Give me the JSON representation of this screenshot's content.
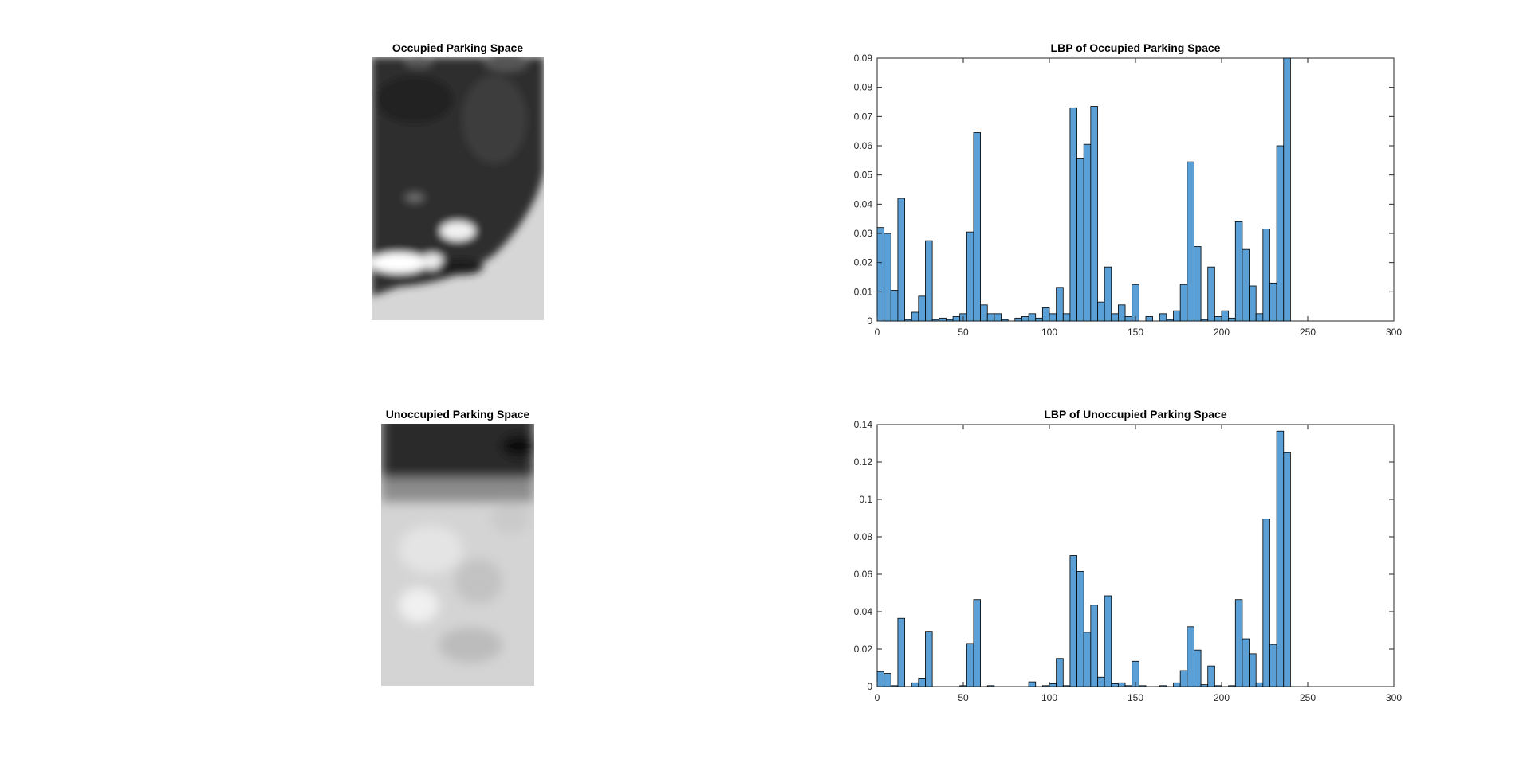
{
  "figure": {
    "panels": [
      {
        "title": "Occupied Parking Space",
        "image": "occupied-parking-space-grayscale-image"
      },
      {
        "title": "Unoccupied Parking Space",
        "image": "unoccupied-parking-space-grayscale-image"
      }
    ]
  },
  "colors": {
    "bar_fill": "#5aa0d6",
    "bar_edge": "#000000",
    "axis": "#262626",
    "background": "#ffffff"
  },
  "chart_data": [
    {
      "type": "bar",
      "title": "LBP of Occupied Parking Space",
      "xlabel": "",
      "ylabel": "",
      "xlim": [
        0,
        300
      ],
      "ylim": [
        0,
        0.09
      ],
      "xticks": [
        "0",
        "50",
        "100",
        "150",
        "200",
        "250",
        "300"
      ],
      "yticks": [
        "0",
        "0.01",
        "0.02",
        "0.03",
        "0.04",
        "0.05",
        "0.06",
        "0.07",
        "0.08",
        "0.09"
      ],
      "grid": false,
      "bin_width": 4.0,
      "bin_edges_start": 0,
      "values": [
        0.032,
        0.03,
        0.0105,
        0.042,
        0.0005,
        0.003,
        0.0085,
        0.0275,
        0.0005,
        0.001,
        0.0005,
        0.0015,
        0.0025,
        0.0305,
        0.0645,
        0.0055,
        0.0025,
        0.0025,
        0.0005,
        0.0,
        0.001,
        0.0015,
        0.0025,
        0.001,
        0.0045,
        0.0025,
        0.0115,
        0.0025,
        0.073,
        0.0555,
        0.0605,
        0.0735,
        0.0065,
        0.0185,
        0.0025,
        0.0055,
        0.0015,
        0.0125,
        0.0,
        0.0015,
        0.0,
        0.0025,
        0.0005,
        0.0035,
        0.0125,
        0.0545,
        0.0255,
        0.0005,
        0.0185,
        0.0015,
        0.0035,
        0.001,
        0.034,
        0.0245,
        0.012,
        0.0025,
        0.0315,
        0.013,
        0.06,
        0.09
      ]
    },
    {
      "type": "bar",
      "title": "LBP of Unoccupied Parking Space",
      "xlabel": "",
      "ylabel": "",
      "xlim": [
        0,
        300
      ],
      "ylim": [
        0,
        0.14
      ],
      "xticks": [
        "0",
        "50",
        "100",
        "150",
        "200",
        "250",
        "300"
      ],
      "yticks": [
        "0",
        "0.02",
        "0.04",
        "0.06",
        "0.08",
        "0.1",
        "0.12",
        "0.14"
      ],
      "grid": false,
      "bin_width": 4.0,
      "bin_edges_start": 0,
      "values": [
        0.008,
        0.007,
        0.0005,
        0.0365,
        0.0,
        0.002,
        0.0045,
        0.0295,
        0.0,
        0.0,
        0.0,
        0.0,
        0.0005,
        0.023,
        0.0465,
        0.0,
        0.0005,
        0.0,
        0.0,
        0.0,
        0.0,
        0.0,
        0.0025,
        0.0,
        0.0005,
        0.0015,
        0.015,
        0.0005,
        0.07,
        0.0615,
        0.029,
        0.0435,
        0.005,
        0.0485,
        0.0015,
        0.002,
        0.0005,
        0.0135,
        0.0005,
        0.0,
        0.0,
        0.0005,
        0.0,
        0.002,
        0.0085,
        0.032,
        0.0195,
        0.001,
        0.011,
        0.0005,
        0.0,
        0.0005,
        0.0465,
        0.0255,
        0.0175,
        0.002,
        0.0895,
        0.0225,
        0.1365,
        0.125
      ]
    }
  ]
}
